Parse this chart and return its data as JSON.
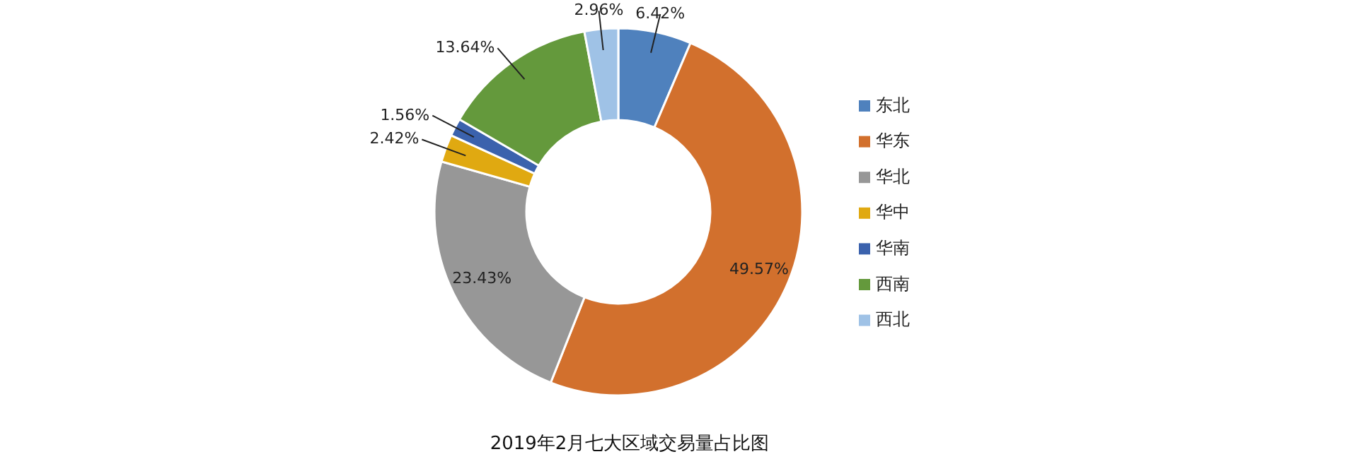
{
  "chart_data": {
    "type": "donut",
    "title": "2019年2月七大区域交易量占比图",
    "categories": [
      "东北",
      "华东",
      "华北",
      "华中",
      "华南",
      "西南",
      "西北"
    ],
    "values": [
      6.42,
      49.57,
      23.43,
      2.42,
      1.56,
      13.64,
      2.96
    ],
    "colors": [
      "#4f81bd",
      "#d2702d",
      "#979797",
      "#e0a911",
      "#3b62ad",
      "#64993c",
      "#9fc2e6"
    ],
    "value_labels": [
      "6.42%",
      "49.57%",
      "23.43%",
      "2.42%",
      "1.56%",
      "13.64%",
      "2.96%"
    ],
    "legend": "right"
  }
}
